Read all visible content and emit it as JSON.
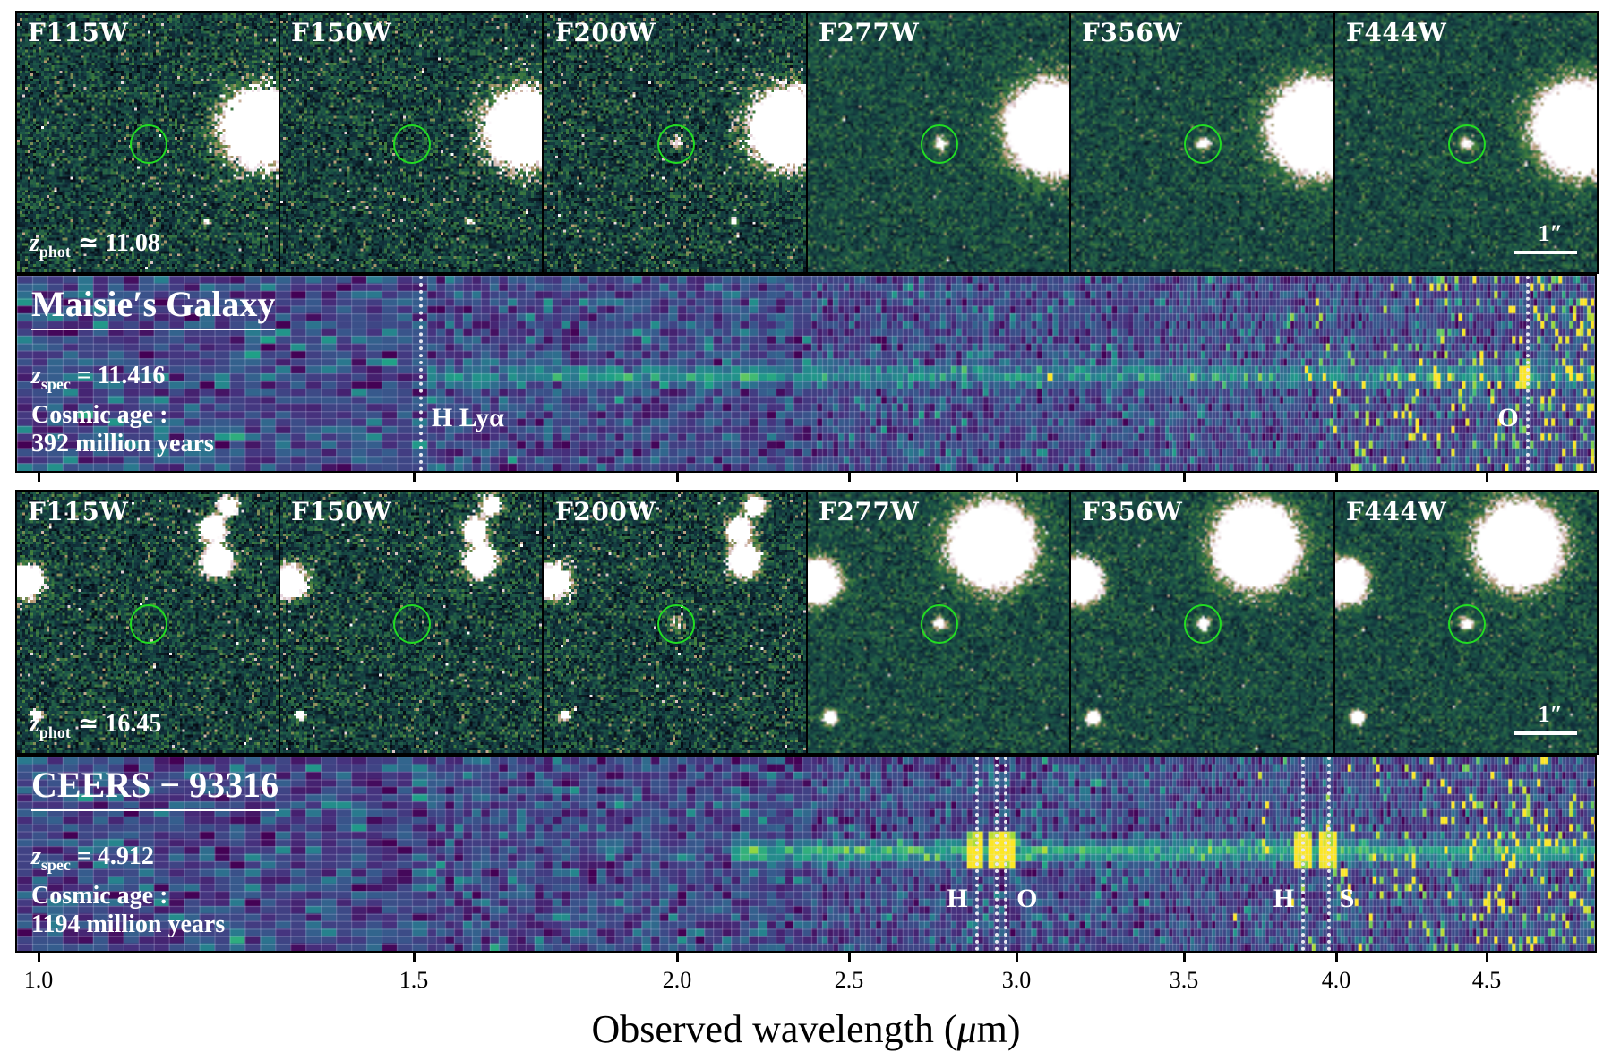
{
  "chart_data": {
    "type": "heatmap",
    "title": "",
    "xlabel": "Observed wavelength (μm)",
    "xlabel_parts": {
      "text": "Observed wavelength (",
      "mu": "μ",
      "unit_end": "m)"
    },
    "x_ticks": [
      1.0,
      1.5,
      2.0,
      2.5,
      3.0,
      3.5,
      4.0,
      4.5
    ],
    "x_tick_labels": [
      "1.0",
      "1.5",
      "2.0",
      "2.5",
      "3.0",
      "3.5",
      "4.0",
      "4.5"
    ],
    "xlim": [
      0.96,
      4.87
    ],
    "colormap": "viridis",
    "scale_bar_label": "1″",
    "galaxies": [
      {
        "name": "Maisie's Galaxy",
        "title": "Maisie′s Galaxy",
        "z_phot_symbol": "z",
        "z_phot_sub": "phot",
        "z_phot_rel": "≃ 11.08",
        "z_phot": 11.08,
        "z_spec_symbol": "z",
        "z_spec_sub": "spec",
        "z_spec_rel": "= 11.416",
        "z_spec": 11.416,
        "age_line1": "Cosmic age :",
        "age_line2": "392 million years",
        "cosmic_age_myr": 392,
        "filters": [
          "F115W",
          "F150W",
          "F200W",
          "F277W",
          "F356W",
          "F444W"
        ],
        "detected_in": [
          false,
          false,
          true,
          true,
          true,
          true
        ],
        "trace_start_um": 1.5,
        "lines": [
          {
            "label": "H Lyα",
            "wavelength_um": 1.51,
            "label_side": "right"
          },
          {
            "label": "O",
            "wavelength_um": 4.63,
            "label_side": "left"
          }
        ]
      },
      {
        "name": "CEERS-93316",
        "title": "CEERS − 93316",
        "z_phot_symbol": "z",
        "z_phot_sub": "phot",
        "z_phot_rel": "≃ 16.45",
        "z_phot": 16.45,
        "z_spec_symbol": "z",
        "z_spec_sub": "spec",
        "z_spec_rel": "= 4.912",
        "z_spec": 4.912,
        "age_line1": "Cosmic age :",
        "age_line2": "1194 million years",
        "cosmic_age_myr": 1194,
        "filters": [
          "F115W",
          "F150W",
          "F200W",
          "F277W",
          "F356W",
          "F444W"
        ],
        "detected_in": [
          false,
          false,
          true,
          true,
          true,
          true
        ],
        "trace_start_um": 2.15,
        "lines": [
          {
            "label": "H",
            "wavelength_um": 2.876,
            "label_side": "left"
          },
          {
            "label": "",
            "wavelength_um": 2.935,
            "label_side": "none"
          },
          {
            "label": "O",
            "wavelength_um": 2.963,
            "label_side": "right"
          },
          {
            "label": "H",
            "wavelength_um": 3.886,
            "label_side": "left"
          },
          {
            "label": "S",
            "wavelength_um": 3.97,
            "label_side": "right"
          }
        ]
      }
    ]
  },
  "colors": {
    "circle": "#22dd22",
    "viridis": [
      "#440154",
      "#46327e",
      "#365c8d",
      "#277f8e",
      "#1fa187",
      "#4ac16d",
      "#a0da39",
      "#fde725"
    ]
  }
}
